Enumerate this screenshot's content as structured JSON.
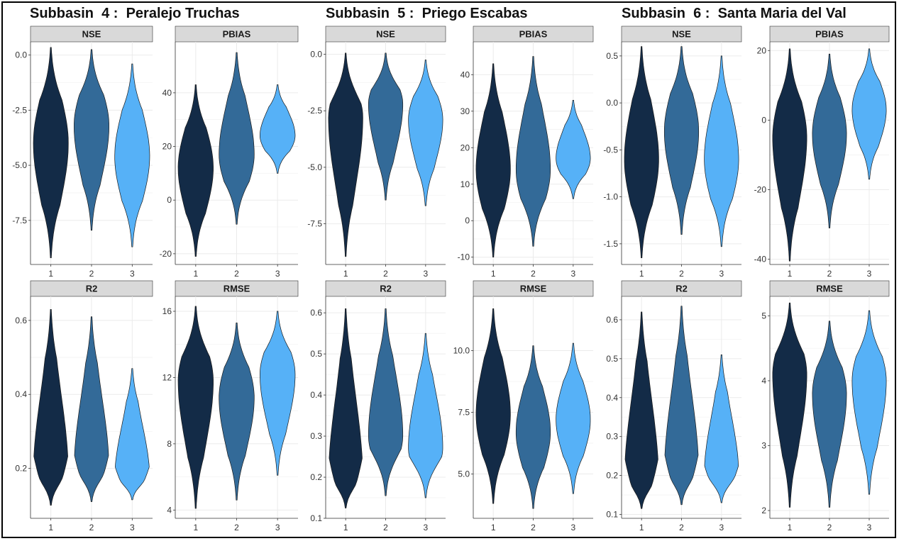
{
  "subbasins": [
    {
      "title": "Subbasin  4 :  Peralejo Truchas"
    },
    {
      "title": "Subbasin  5 :  Priego Escabas"
    },
    {
      "title": "Subbasin  6 :  Santa Maria del Val"
    }
  ],
  "colors": {
    "model_1": "#132b47",
    "model_2": "#336a98",
    "model_3": "#56b1f7",
    "strip": "#d9d9d9",
    "grid": "#ebebeb"
  },
  "chart_data": [
    {
      "type": "violin",
      "subbasin": "Subbasin  4 :  Peralejo Truchas",
      "facet": "NSE",
      "categories": [
        "1",
        "2",
        "3"
      ],
      "yticks": [
        0.0,
        -2.5,
        -5.0,
        -7.5
      ],
      "ytick_labels": [
        "0.0",
        "-2.5",
        "-5.0",
        "-7.5"
      ],
      "ylim": [
        -9.5,
        0.6
      ],
      "series": [
        {
          "category": "1",
          "min": -9.2,
          "max": 0.35,
          "mode": -4.0
        },
        {
          "category": "2",
          "min": -7.95,
          "max": 0.25,
          "mode": -3.2
        },
        {
          "category": "3",
          "min": -8.7,
          "max": -0.4,
          "mode": -4.6
        }
      ]
    },
    {
      "type": "violin",
      "subbasin": "Subbasin  4 :  Peralejo Truchas",
      "facet": "PBIAS",
      "categories": [
        "1",
        "2",
        "3"
      ],
      "yticks": [
        40,
        20,
        0,
        -20
      ],
      "ytick_labels": [
        "40",
        "20",
        "0",
        "-20"
      ],
      "ylim": [
        -24,
        59
      ],
      "series": [
        {
          "category": "1",
          "min": -21,
          "max": 43,
          "mode": 12
        },
        {
          "category": "2",
          "min": -9,
          "max": 55,
          "mode": 17
        },
        {
          "category": "3",
          "min": 10,
          "max": 43,
          "mode": 24
        }
      ]
    },
    {
      "type": "violin",
      "subbasin": "Subbasin  4 :  Peralejo Truchas",
      "facet": "R2",
      "categories": [
        "1",
        "2",
        "3"
      ],
      "yticks": [
        0.6,
        0.4,
        0.2
      ],
      "ytick_labels": [
        "0.6",
        "0.4",
        "0.2"
      ],
      "ylim": [
        0.065,
        0.665
      ],
      "series": [
        {
          "category": "1",
          "min": 0.1,
          "max": 0.63,
          "mode": 0.18
        },
        {
          "category": "2",
          "min": 0.11,
          "max": 0.61,
          "mode": 0.19
        },
        {
          "category": "3",
          "min": 0.115,
          "max": 0.47,
          "mode": 0.17
        }
      ]
    },
    {
      "type": "violin",
      "subbasin": "Subbasin  4 :  Peralejo Truchas",
      "facet": "RMSE",
      "categories": [
        "1",
        "2",
        "3"
      ],
      "yticks": [
        16,
        12,
        8,
        4
      ],
      "ytick_labels": [
        "16",
        "12",
        "8",
        "4"
      ],
      "ylim": [
        3.5,
        16.9
      ],
      "series": [
        {
          "category": "1",
          "min": 4.1,
          "max": 16.3,
          "mode": 11.8
        },
        {
          "category": "2",
          "min": 4.6,
          "max": 15.3,
          "mode": 10.8
        },
        {
          "category": "3",
          "min": 6.1,
          "max": 16.0,
          "mode": 12.2
        }
      ]
    },
    {
      "type": "violin",
      "subbasin": "Subbasin  5 :  Priego Escabas",
      "facet": "NSE",
      "categories": [
        "1",
        "2",
        "3"
      ],
      "yticks": [
        0.0,
        -2.5,
        -5.0,
        -7.5
      ],
      "ytick_labels": [
        "0.0",
        "-2.5",
        "-5.0",
        "-7.5"
      ],
      "ylim": [
        -9.3,
        0.55
      ],
      "series": [
        {
          "category": "1",
          "min": -8.95,
          "max": 0.05,
          "mode": -2.8
        },
        {
          "category": "2",
          "min": -6.45,
          "max": 0.05,
          "mode": -2.2
        },
        {
          "category": "3",
          "min": -6.7,
          "max": -0.25,
          "mode": -2.9
        }
      ]
    },
    {
      "type": "violin",
      "subbasin": "Subbasin  5 :  Priego Escabas",
      "facet": "PBIAS",
      "categories": [
        "1",
        "2",
        "3"
      ],
      "yticks": [
        40,
        30,
        20,
        10,
        0,
        -10
      ],
      "ytick_labels": [
        "40",
        "30",
        "20",
        "10",
        "0",
        "-10"
      ],
      "ylim": [
        -12,
        49
      ],
      "series": [
        {
          "category": "1",
          "min": -10,
          "max": 43,
          "mode": 14
        },
        {
          "category": "2",
          "min": -7,
          "max": 45,
          "mode": 14
        },
        {
          "category": "3",
          "min": 6,
          "max": 33,
          "mode": 17
        }
      ]
    },
    {
      "type": "violin",
      "subbasin": "Subbasin  5 :  Priego Escabas",
      "facet": "R2",
      "categories": [
        "1",
        "2",
        "3"
      ],
      "yticks": [
        0.6,
        0.5,
        0.4,
        0.3,
        0.2,
        0.1
      ],
      "ytick_labels": [
        "0.6",
        "0.5",
        "0.4",
        "0.3",
        "0.2",
        "0.1"
      ],
      "ylim": [
        0.1,
        0.64
      ],
      "series": [
        {
          "category": "1",
          "min": 0.125,
          "max": 0.61,
          "mode": 0.19
        },
        {
          "category": "2",
          "min": 0.155,
          "max": 0.61,
          "mode": 0.3
        },
        {
          "category": "3",
          "min": 0.15,
          "max": 0.55,
          "mode": 0.27
        }
      ]
    },
    {
      "type": "violin",
      "subbasin": "Subbasin  5 :  Priego Escabas",
      "facet": "RMSE",
      "categories": [
        "1",
        "2",
        "3"
      ],
      "yticks": [
        10.0,
        7.5,
        5.0
      ],
      "ytick_labels": [
        "10.0",
        "7.5",
        "5.0"
      ],
      "ylim": [
        3.2,
        12.2
      ],
      "series": [
        {
          "category": "1",
          "min": 3.8,
          "max": 11.7,
          "mode": 7.4
        },
        {
          "category": "2",
          "min": 3.6,
          "max": 10.2,
          "mode": 6.7
        },
        {
          "category": "3",
          "min": 4.2,
          "max": 10.3,
          "mode": 7.2
        }
      ]
    },
    {
      "type": "violin",
      "subbasin": "Subbasin  6 :  Santa Maria del Val",
      "facet": "NSE",
      "categories": [
        "1",
        "2",
        "3"
      ],
      "yticks": [
        0.5,
        0.0,
        -0.5,
        -1.0,
        -1.5
      ],
      "ytick_labels": [
        "0.5",
        "0.0",
        "-0.5",
        "-1.0",
        "-1.5"
      ],
      "ylim": [
        -1.72,
        0.65
      ],
      "series": [
        {
          "category": "1",
          "min": -1.65,
          "max": 0.6,
          "mode": -0.6
        },
        {
          "category": "2",
          "min": -1.4,
          "max": 0.6,
          "mode": -0.3
        },
        {
          "category": "3",
          "min": -1.53,
          "max": 0.5,
          "mode": -0.6
        }
      ]
    },
    {
      "type": "violin",
      "subbasin": "Subbasin  6 :  Santa Maria del Val",
      "facet": "PBIAS",
      "categories": [
        "1",
        "2",
        "3"
      ],
      "yticks": [
        20,
        0,
        -20,
        -40
      ],
      "ytick_labels": [
        "20",
        "0",
        "-20",
        "-40"
      ],
      "ylim": [
        -41.5,
        22.5
      ],
      "series": [
        {
          "category": "1",
          "min": -40.5,
          "max": 20.5,
          "mode": -5
        },
        {
          "category": "2",
          "min": -31,
          "max": 19,
          "mode": -4
        },
        {
          "category": "3",
          "min": -17,
          "max": 20.5,
          "mode": 3
        }
      ]
    },
    {
      "type": "violin",
      "subbasin": "Subbasin  6 :  Santa Maria del Val",
      "facet": "R2",
      "categories": [
        "1",
        "2",
        "3"
      ],
      "yticks": [
        0.6,
        0.5,
        0.4,
        0.3,
        0.2,
        0.1
      ],
      "ytick_labels": [
        "0.6",
        "0.5",
        "0.4",
        "0.3",
        "0.2",
        "0.1"
      ],
      "ylim": [
        0.09,
        0.66
      ],
      "series": [
        {
          "category": "1",
          "min": 0.115,
          "max": 0.62,
          "mode": 0.18
        },
        {
          "category": "2",
          "min": 0.125,
          "max": 0.635,
          "mode": 0.2
        },
        {
          "category": "3",
          "min": 0.13,
          "max": 0.51,
          "mode": 0.2
        }
      ]
    },
    {
      "type": "violin",
      "subbasin": "Subbasin  6 :  Santa Maria del Val",
      "facet": "RMSE",
      "categories": [
        "1",
        "2",
        "3"
      ],
      "yticks": [
        5,
        4,
        3,
        2
      ],
      "ytick_labels": [
        "5",
        "4",
        "3",
        "2"
      ],
      "ylim": [
        1.88,
        5.3
      ],
      "series": [
        {
          "category": "1",
          "min": 2.05,
          "max": 5.2,
          "mode": 4.1
        },
        {
          "category": "2",
          "min": 2.05,
          "max": 4.92,
          "mode": 3.8
        },
        {
          "category": "3",
          "min": 2.25,
          "max": 5.08,
          "mode": 4.0
        }
      ]
    }
  ]
}
